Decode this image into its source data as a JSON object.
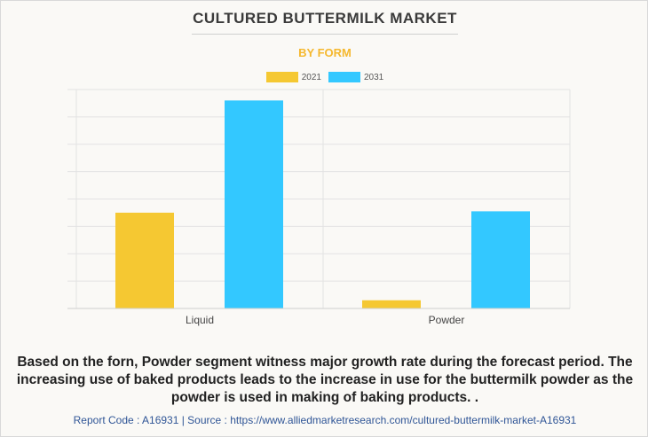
{
  "header": {
    "title": "CULTURED BUTTERMILK MARKET",
    "subtitle": "BY FORM"
  },
  "chart_data": {
    "type": "bar",
    "categories": [
      "Liquid",
      "Powder"
    ],
    "series": [
      {
        "name": "2021",
        "color": "#f5c832",
        "values": [
          3.5,
          0.3
        ]
      },
      {
        "name": "2031",
        "color": "#33c8ff",
        "values": [
          7.6,
          3.55
        ]
      }
    ],
    "ylim": [
      0,
      8
    ],
    "grid": true,
    "legend": "top-center",
    "xlabel": "",
    "ylabel": ""
  },
  "description": "Based on the forn, Powder segment witness major growth rate during the forecast period. The increasing use of baked products leads to the increase in use for the buttermilk powder as the powder is used in making of baking products. .",
  "footer": "Report Code : A16931  |  Source : https://www.alliedmarketresearch.com/cultured-buttermilk-market-A16931"
}
